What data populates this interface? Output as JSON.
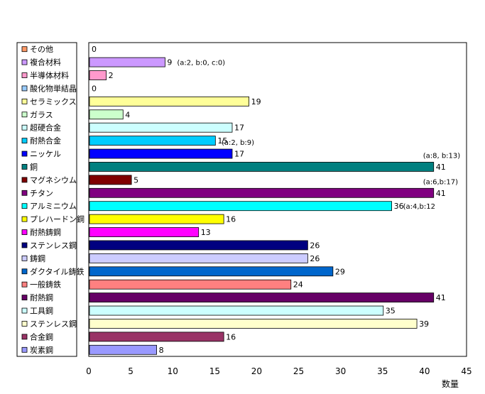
{
  "chart_data": {
    "type": "bar",
    "orientation": "horizontal",
    "categories": [
      "その他",
      "複合材料",
      "半導体材料",
      "酸化物単結晶",
      "セラミックス",
      "ガラス",
      "超硬合金",
      "耐熱合金",
      "ニッケル",
      "銅",
      "マグネシウム",
      "チタン",
      "アルミニウム",
      "プレハードン鋼",
      "耐熱鋳鋼",
      "ステンレス鋼",
      "鋳鋼",
      "ダクタイル鋳鉄",
      "一般鋳鉄",
      "耐熱鋼",
      "工具鋼",
      "ステンレス鋼",
      "合金鋼",
      "炭素鋼"
    ],
    "values": [
      0,
      9,
      2,
      0,
      19,
      4,
      17,
      15,
      17,
      41,
      5,
      41,
      36,
      16,
      13,
      26,
      26,
      29,
      24,
      41,
      35,
      39,
      16,
      8
    ],
    "colors": [
      "#FF9966",
      "#CC99FF",
      "#FF99CC",
      "#99CCFF",
      "#FFFF99",
      "#CCFFCC",
      "#CCFFFF",
      "#00CCFF",
      "#0000FF",
      "#008080",
      "#800000",
      "#800080",
      "#00FFFF",
      "#FFFF00",
      "#FF00FF",
      "#000080",
      "#CCCCFF",
      "#0066CC",
      "#FF8080",
      "#660066",
      "#CCFFFF",
      "#FFFFCC",
      "#993366",
      "#9999FF"
    ],
    "annotations": [
      {
        "category_index": 1,
        "text": "(a:2, b:0, c:0)"
      },
      {
        "category_index": 8,
        "text": "(a:2, b:9)"
      },
      {
        "category_index": 9,
        "text": "(a:8, b:13)"
      },
      {
        "category_index": 11,
        "text": "(a:6,b:17)"
      },
      {
        "category_index": 12,
        "text": "(a:4,b:12"
      }
    ],
    "x_ticks": [
      0,
      5,
      10,
      15,
      20,
      25,
      30,
      35,
      40,
      45
    ],
    "xlim": [
      0,
      45
    ],
    "xlabel": "数量",
    "legend": "left",
    "grid": false
  }
}
